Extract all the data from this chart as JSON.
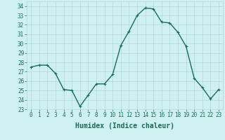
{
  "x": [
    0,
    1,
    2,
    3,
    4,
    5,
    6,
    7,
    8,
    9,
    10,
    11,
    12,
    13,
    14,
    15,
    16,
    17,
    18,
    19,
    20,
    21,
    22,
    23
  ],
  "y": [
    27.5,
    27.7,
    27.7,
    26.8,
    25.1,
    25.0,
    23.3,
    24.5,
    25.7,
    25.7,
    26.7,
    29.8,
    31.3,
    33.0,
    33.8,
    33.7,
    32.3,
    32.2,
    31.2,
    29.7,
    26.3,
    25.3,
    24.1,
    25.1
  ],
  "line_color": "#1a6b5a",
  "marker": "+",
  "marker_size": 3,
  "linewidth": 1.0,
  "xlabel": "Humidex (Indice chaleur)",
  "ylim": [
    23,
    34.5
  ],
  "yticks": [
    23,
    24,
    25,
    26,
    27,
    28,
    29,
    30,
    31,
    32,
    33,
    34
  ],
  "xlim": [
    -0.5,
    23.5
  ],
  "xticks": [
    0,
    1,
    2,
    3,
    4,
    5,
    6,
    7,
    8,
    9,
    10,
    11,
    12,
    13,
    14,
    15,
    16,
    17,
    18,
    19,
    20,
    21,
    22,
    23
  ],
  "bg_color": "#cff0f0",
  "grid_color": "#b0d8d8",
  "tick_fontsize": 5.5,
  "xlabel_fontsize": 7
}
